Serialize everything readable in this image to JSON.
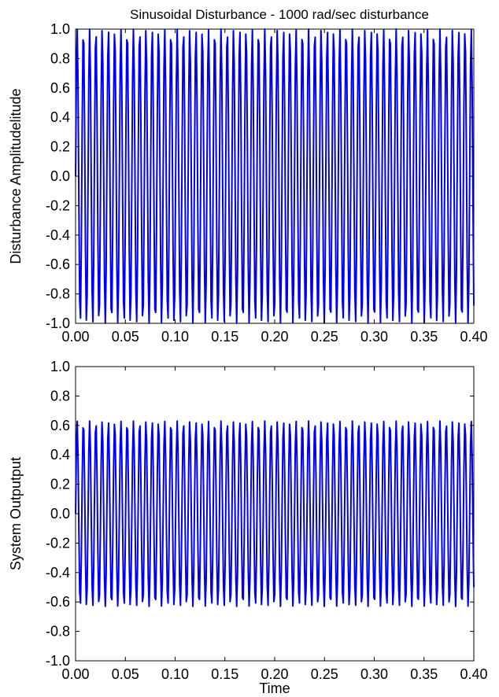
{
  "chart_data": [
    {
      "type": "line",
      "title": "Sinusoidal Disturbance - 1000 rad/sec disturbance",
      "xlabel": "",
      "ylabel": "Disturbance Amplitudelitude",
      "xlim": [
        0,
        0.4
      ],
      "ylim": [
        -1,
        1
      ],
      "x_ticks": [
        "0.00",
        "0.05",
        "0.10",
        "0.15",
        "0.20",
        "0.25",
        "0.30",
        "0.35",
        "0.40"
      ],
      "y_ticks": [
        "1.0",
        "0.8",
        "0.6",
        "0.4",
        "0.2",
        "0.0",
        "-0.2",
        "-0.4",
        "-0.6",
        "-0.8",
        "-1.0"
      ],
      "grid": false,
      "series": [
        {
          "color": "#0000ee",
          "function": "sin",
          "frequency_rad_per_sec": 1000,
          "amplitude": 1.0,
          "x_start": 0,
          "x_end": 0.4,
          "y_start": 0.0,
          "y_end": -0.88
        }
      ]
    },
    {
      "type": "line",
      "title": "",
      "xlabel": "Time",
      "ylabel": "System Outputput",
      "xlim": [
        0,
        0.4
      ],
      "ylim": [
        -1,
        1
      ],
      "x_ticks": [
        "0.00",
        "0.05",
        "0.10",
        "0.15",
        "0.20",
        "0.25",
        "0.30",
        "0.35",
        "0.40"
      ],
      "y_ticks": [
        "1.0",
        "0.8",
        "0.6",
        "0.4",
        "0.2",
        "0.0",
        "-0.2",
        "-0.4",
        "-0.6",
        "-0.8",
        "-1.0"
      ],
      "grid": false,
      "series": [
        {
          "color": "#0000ee",
          "function": "sin",
          "frequency_rad_per_sec": 1000,
          "amplitude": 0.63,
          "x_start": 0,
          "x_end": 0.4,
          "y_start": 0.0,
          "y_end": -0.5
        }
      ]
    }
  ]
}
